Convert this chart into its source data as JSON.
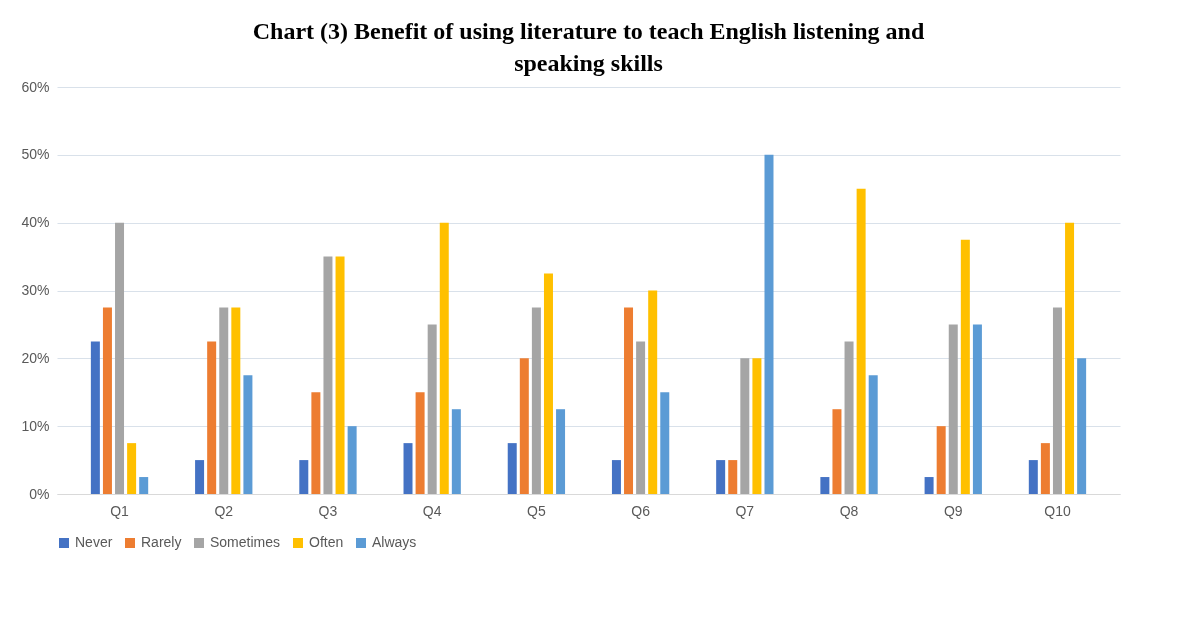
{
  "chart_data": {
    "type": "bar",
    "title": "Chart (3) Benefit of using literature to teach English listening and speaking skills",
    "categories": [
      "Q1",
      "Q2",
      "Q3",
      "Q4",
      "Q5",
      "Q6",
      "Q7",
      "Q8",
      "Q9",
      "Q10"
    ],
    "series": [
      {
        "name": "Never",
        "color": "#4472c4",
        "values": [
          22.5,
          5,
          5,
          7.5,
          7.5,
          5,
          5,
          2.5,
          2.5,
          5
        ]
      },
      {
        "name": "Rarely",
        "color": "#ed7d31",
        "values": [
          27.5,
          22.5,
          15,
          15,
          20,
          27.5,
          5,
          12.5,
          10,
          7.5
        ]
      },
      {
        "name": "Sometimes",
        "color": "#a5a5a5",
        "values": [
          40,
          27.5,
          35,
          25,
          27.5,
          22.5,
          20,
          22.5,
          25,
          27.5
        ]
      },
      {
        "name": "Often",
        "color": "#ffc000",
        "values": [
          7.5,
          27.5,
          35,
          40,
          32.5,
          30,
          20,
          45,
          37.5,
          40
        ]
      },
      {
        "name": "Always",
        "color": "#5b9bd5",
        "values": [
          2.5,
          17.5,
          10,
          12.5,
          12.5,
          15,
          50,
          17.5,
          25,
          20
        ]
      }
    ],
    "ylim": [
      0,
      60
    ],
    "yticks": [
      {
        "value": 0,
        "label": "0%"
      },
      {
        "value": 10,
        "label": "10%"
      },
      {
        "value": 20,
        "label": "20%"
      },
      {
        "value": 30,
        "label": "30%"
      },
      {
        "value": 40,
        "label": "40%"
      },
      {
        "value": 50,
        "label": "50%"
      },
      {
        "value": 60,
        "label": "60%"
      }
    ],
    "grid": "y",
    "legend": "bottom"
  }
}
